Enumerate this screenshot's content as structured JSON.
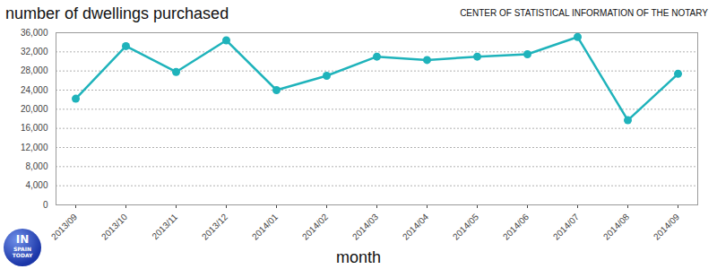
{
  "chart_data": {
    "type": "line",
    "title": "number of dwellings purchased",
    "subtitle": "CENTER OF STATISTICAL INFORMATION OF THE NOTARY",
    "x_label": "month",
    "annotations": [
      "IN",
      "SPAIN",
      "TODAY"
    ],
    "categories": [
      "2013/09",
      "2013/10",
      "2013/11",
      "2013/12",
      "2014/01",
      "2014/02",
      "2014/03",
      "2014/04",
      "2014/05",
      "2014/06",
      "2014/07",
      "2014/08",
      "2014/09"
    ],
    "values": [
      22200,
      33200,
      27800,
      34400,
      24000,
      27000,
      31000,
      30300,
      31000,
      31500,
      35100,
      17700,
      27400
    ],
    "color": "#1fb3bb",
    "marker": "circle",
    "line_style": "solid",
    "ylim": [
      0,
      36000
    ],
    "yticks": [
      0,
      {
        "value": 4000,
        "label": "4,000"
      },
      {
        "value": 8000,
        "label": "8,000"
      },
      {
        "value": 12000,
        "label": "12,000"
      },
      {
        "value": 16000,
        "label": "16,000"
      },
      {
        "value": 20000,
        "label": "20,000"
      },
      {
        "value": 24000,
        "label": "24,000"
      },
      {
        "value": 28000,
        "label": "28,000"
      },
      {
        "value": 32000,
        "label": "32,000"
      },
      {
        "value": 36000,
        "label": "36,000"
      }
    ],
    "grid": true
  }
}
